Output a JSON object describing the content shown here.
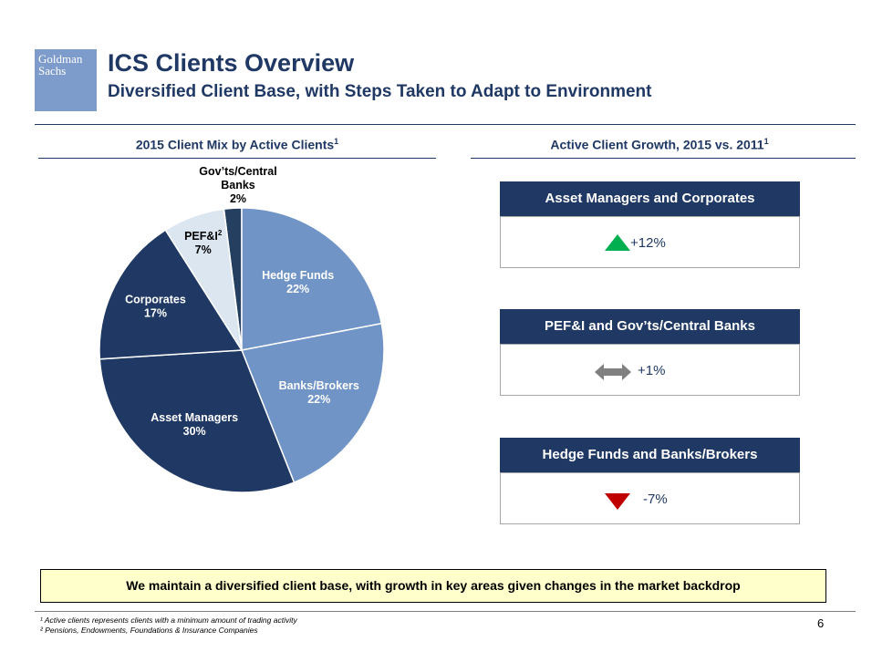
{
  "logo": {
    "line1": "Goldman",
    "line2": "Sachs"
  },
  "header": {
    "title": "ICS Clients Overview",
    "subtitle": "Diversified Client Base, with Steps Taken to Adapt to Environment"
  },
  "left_section": {
    "title": "2015 Client Mix by Active Clients",
    "sup": "1"
  },
  "right_section": {
    "title": "Active Client Growth, 2015 vs. 2011",
    "sup": "1"
  },
  "chart_data": [
    {
      "type": "pie",
      "title": "2015 Client Mix by Active Clients",
      "slices": [
        {
          "label": "Gov’ts/Central Banks",
          "value": 2,
          "display": "2%",
          "color": "#243f60"
        },
        {
          "label": "Hedge Funds",
          "value": 22,
          "display": "22%",
          "color": "#7094c6"
        },
        {
          "label": "Banks/Brokers",
          "value": 22,
          "display": "22%",
          "color": "#7094c6"
        },
        {
          "label": "Asset Managers",
          "value": 30,
          "display": "30%",
          "color": "#1f3864"
        },
        {
          "label": "Corporates",
          "value": 17,
          "display": "17%",
          "color": "#1f3864"
        },
        {
          "label": "PEF&I",
          "label_sup": "2",
          "value": 7,
          "display": "7%",
          "color": "#dce6f1"
        }
      ]
    }
  ],
  "growth_boxes": [
    {
      "title": "Asset Managers and Corporates",
      "value": "+12%",
      "indicator": "up-triangle-icon",
      "color": "#00b050"
    },
    {
      "title": "PEF&I and Gov’ts/Central Banks",
      "value": "+1%",
      "indicator": "double-arrow-icon",
      "color": "#808080"
    },
    {
      "title": "Hedge Funds and Banks/Brokers",
      "value": "-7%",
      "indicator": "down-triangle-icon",
      "color": "#c00000"
    }
  ],
  "banner": "We maintain a diversified client base, with growth in key areas given changes in the market backdrop",
  "footnotes": [
    "¹ Active clients represents clients with a minimum amount of trading activity",
    "² Pensions, Endowments, Foundations & Insurance Companies"
  ],
  "page_number": "6"
}
